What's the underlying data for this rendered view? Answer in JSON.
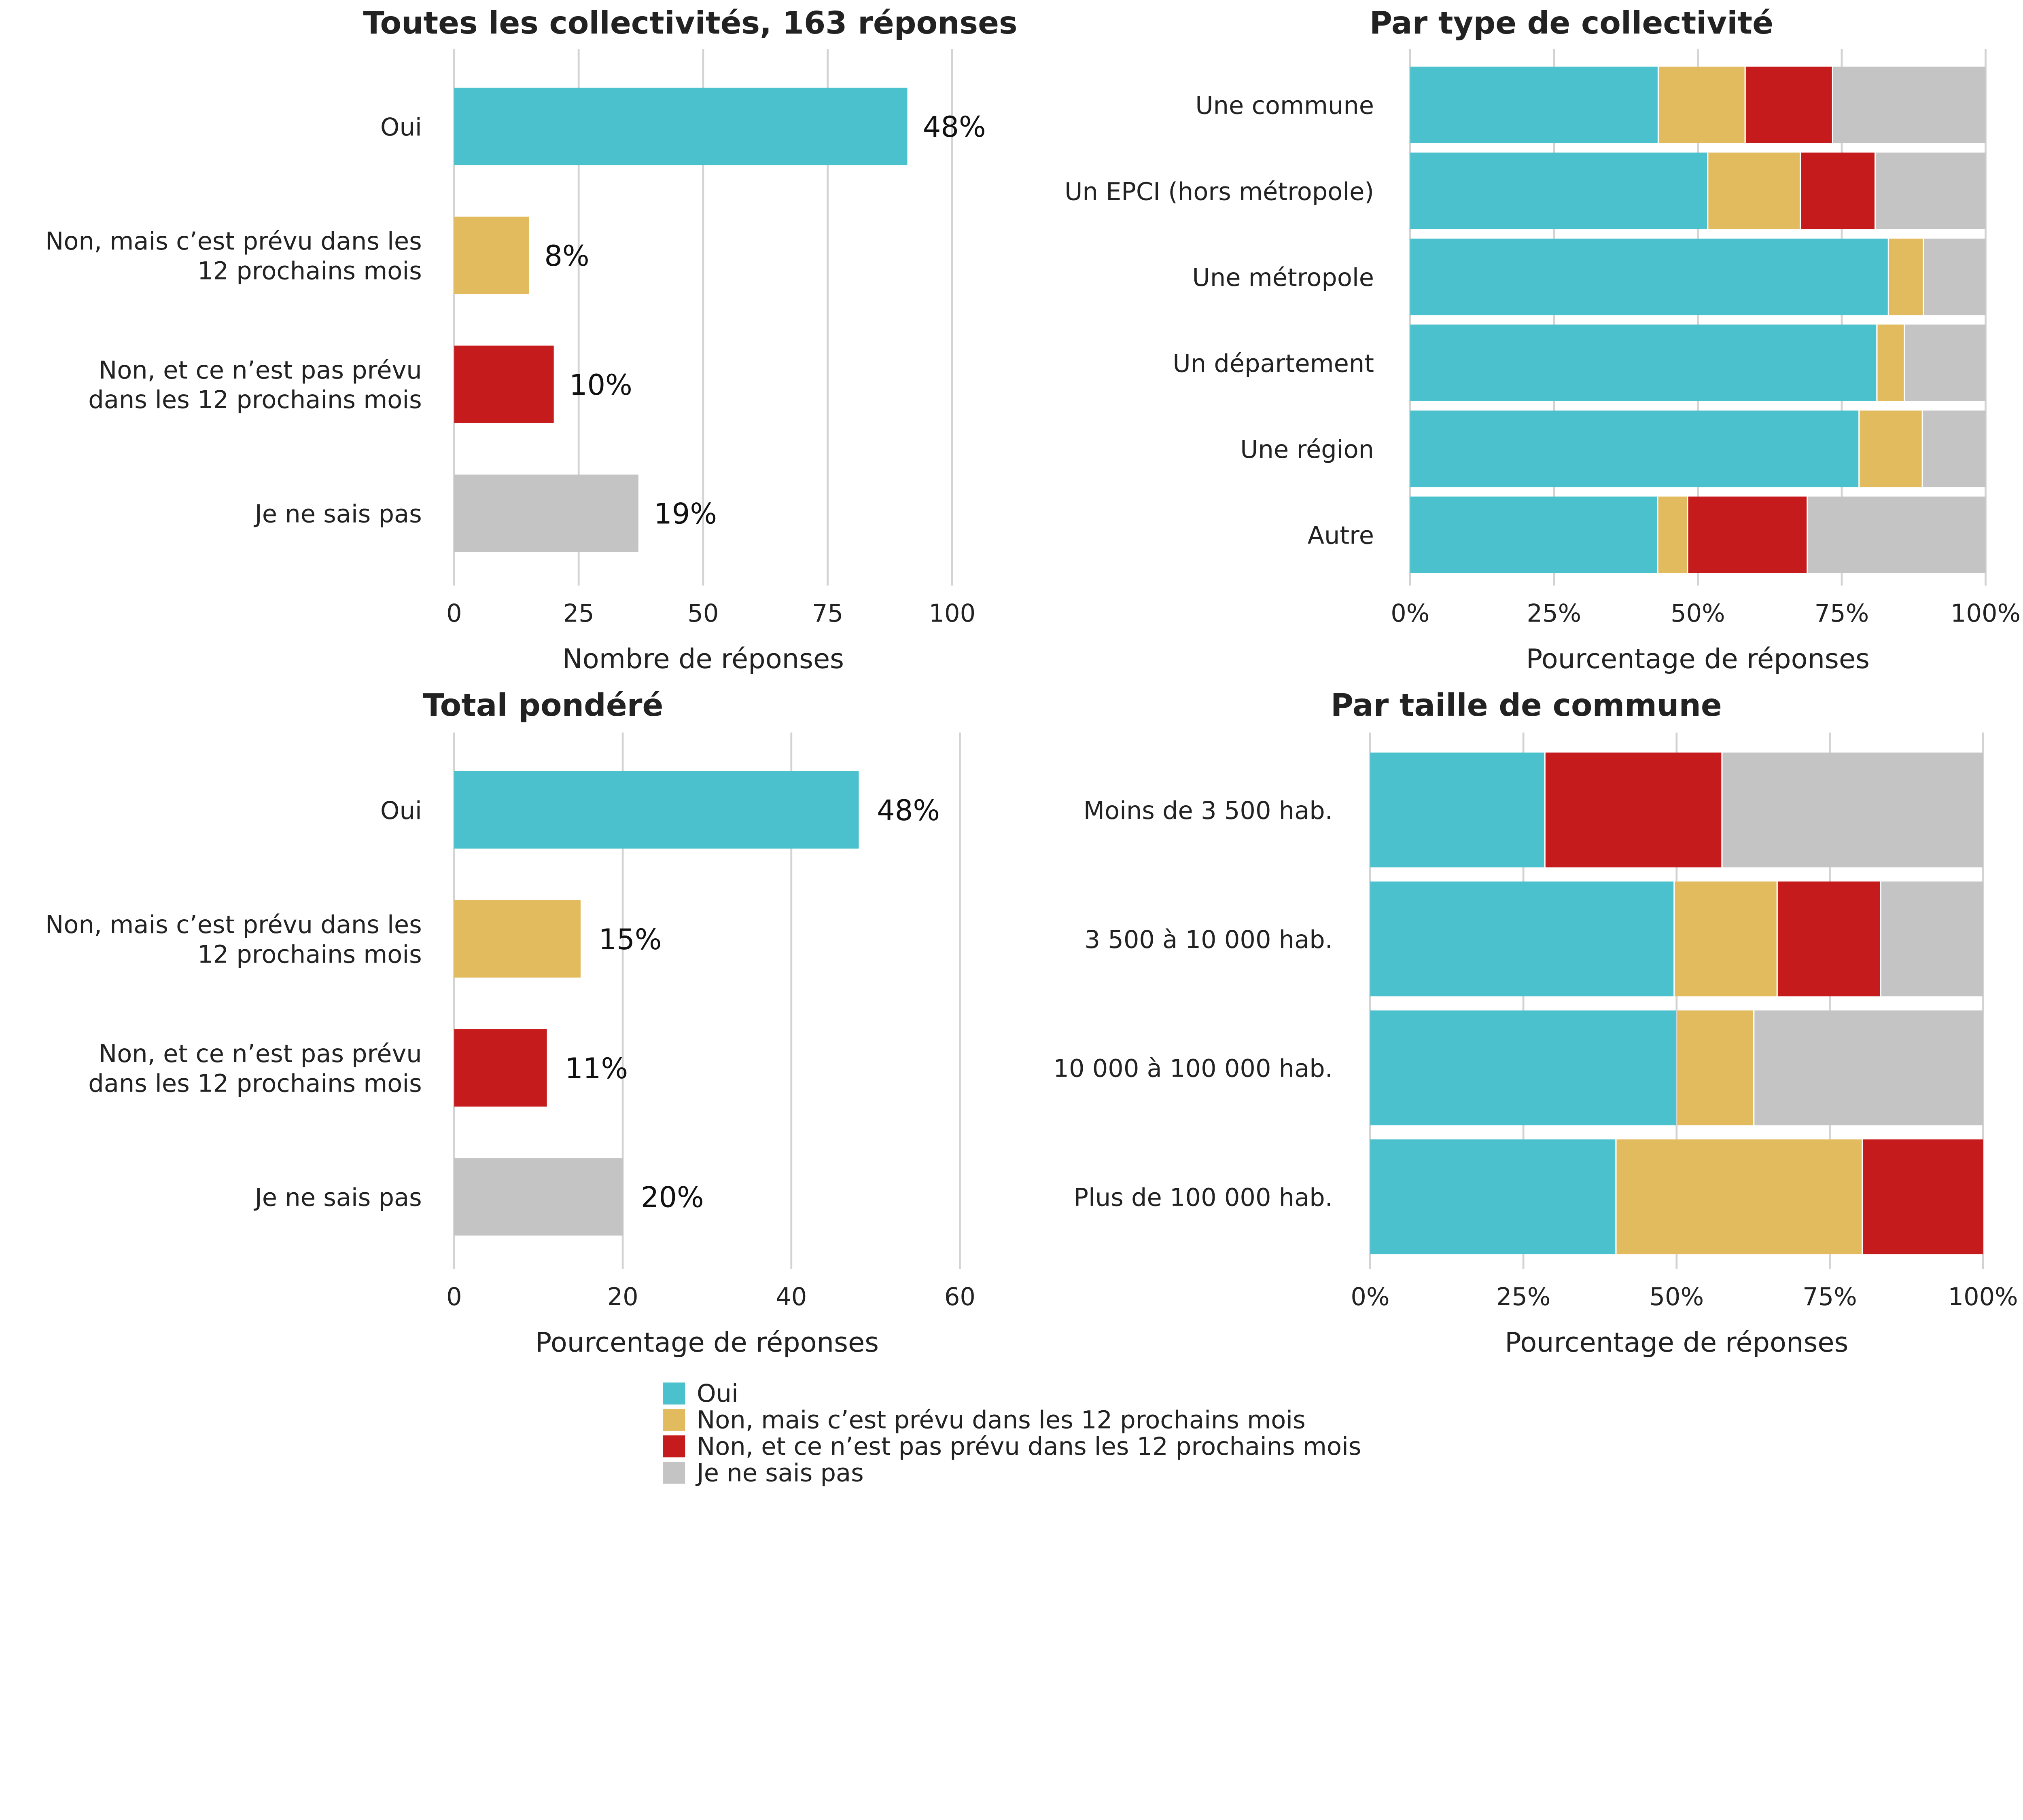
{
  "colors": {
    "Oui": "#4bc1cd",
    "Non, mais c’est prévu dans les 12 prochains mois": "#e3bb5f",
    "Non, et ce n’est pas prévu dans les 12 prochains mois": "#c51b1c",
    "Je ne sais pas": "#c4c4c4"
  },
  "legend": [
    "Oui",
    "Non, mais c’est prévu dans les 12 prochains mois",
    "Non, et ce n’est pas prévu dans les 12 prochains mois",
    "Je ne sais pas"
  ],
  "chart_data": [
    {
      "type": "bar",
      "orientation": "horizontal",
      "title": "Toutes les collectivités, 163 réponses",
      "xlabel": "Nombre de réponses",
      "xlim": [
        0,
        100
      ],
      "xticks": [
        "0",
        "25",
        "50",
        "75",
        "100"
      ],
      "grid": true,
      "categories": [
        [
          "Oui"
        ],
        [
          "Non, mais c’est prévu dans les",
          "12 prochains mois"
        ],
        [
          "Non, et ce n’est pas prévu",
          "dans les 12 prochains mois"
        ],
        [
          "Je ne sais pas"
        ]
      ],
      "series_keys": [
        "Oui",
        "Non, mais c’est prévu dans les 12 prochains mois",
        "Non, et ce n’est pas prévu dans les 12 prochains mois",
        "Je ne sais pas"
      ],
      "values": [
        91,
        15,
        20,
        37
      ],
      "data_labels": [
        "48%",
        "8%",
        "10%",
        "19%"
      ]
    },
    {
      "type": "bar",
      "orientation": "horizontal",
      "stacked": true,
      "title": "Par type de collectivité",
      "xlabel": "Pourcentage de réponses",
      "xlim": [
        0,
        100
      ],
      "xticks": [
        "0%",
        "25%",
        "50%",
        "75%",
        "100%"
      ],
      "grid": true,
      "categories": [
        "Une commune",
        "Un EPCI (hors métropole)",
        "Une métropole",
        "Un département",
        "Une région",
        "Autre"
      ],
      "series": [
        {
          "name": "Oui",
          "values": [
            43.0,
            51.6,
            83.0,
            81.0,
            77.9,
            42.9
          ]
        },
        {
          "name": "Non, mais c’est prévu dans les 12 prochains mois",
          "values": [
            15.1,
            16.1,
            6.1,
            4.8,
            11.0,
            5.2
          ]
        },
        {
          "name": "Non, et ce n’est pas prévu dans les 12 prochains mois",
          "values": [
            15.2,
            13.0,
            0,
            0,
            0,
            20.8
          ]
        },
        {
          "name": "Je ne sais pas",
          "values": [
            26.7,
            19.3,
            10.9,
            14.2,
            11.1,
            31.1
          ]
        }
      ]
    },
    {
      "type": "bar",
      "orientation": "horizontal",
      "title": "Total pondéré",
      "xlabel": "Pourcentage de réponses",
      "xlim": [
        0,
        60
      ],
      "xticks": [
        "0",
        "20",
        "40",
        "60"
      ],
      "grid": true,
      "categories": [
        [
          "Oui"
        ],
        [
          "Non, mais c’est prévu dans les",
          "12 prochains mois"
        ],
        [
          "Non, et ce n’est pas prévu",
          "dans les 12 prochains mois"
        ],
        [
          "Je ne sais pas"
        ]
      ],
      "series_keys": [
        "Oui",
        "Non, mais c’est prévu dans les 12 prochains mois",
        "Non, et ce n’est pas prévu dans les 12 prochains mois",
        "Je ne sais pas"
      ],
      "values": [
        48,
        15,
        11,
        20
      ],
      "data_labels": [
        "48%",
        "15%",
        "11%",
        "20%"
      ]
    },
    {
      "type": "bar",
      "orientation": "horizontal",
      "stacked": true,
      "title": "Par taille de commune",
      "xlabel": "Pourcentage de réponses",
      "xlim": [
        0,
        100
      ],
      "xticks": [
        "0%",
        "25%",
        "50%",
        "75%",
        "100%"
      ],
      "grid": true,
      "categories": [
        "Moins de 3 500 hab.",
        "3 500 à 10 000 hab.",
        "10 000 à 100 000 hab.",
        "Plus de 100 000 hab."
      ],
      "series": [
        {
          "name": "Oui",
          "values": [
            28.4,
            49.5,
            49.9,
            40.0
          ]
        },
        {
          "name": "Non, mais c’est prévu dans les 12 prochains mois",
          "values": [
            0,
            16.8,
            12.6,
            40.2
          ]
        },
        {
          "name": "Non, et ce n’est pas prévu dans les 12 prochains mois",
          "values": [
            28.9,
            16.9,
            0,
            19.8
          ]
        },
        {
          "name": "Je ne sais pas",
          "values": [
            42.7,
            16.8,
            37.5,
            0
          ]
        }
      ]
    }
  ]
}
